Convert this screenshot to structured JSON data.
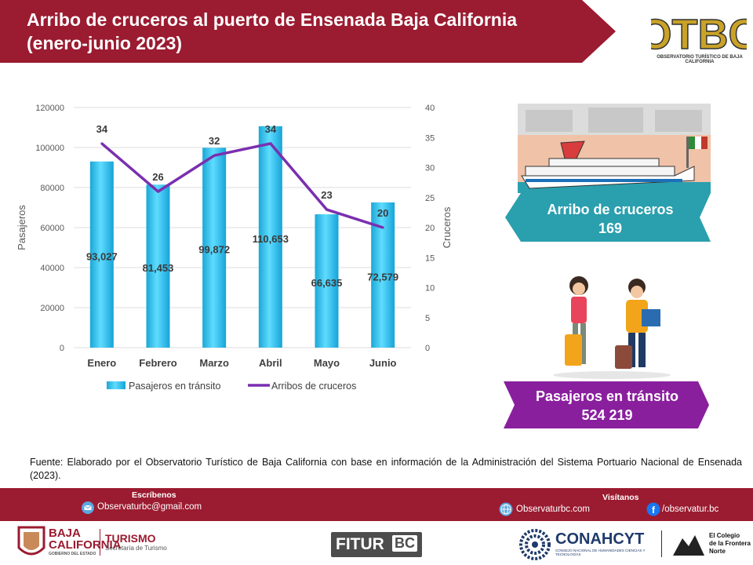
{
  "header": {
    "title_line1": "Arribo de cruceros al puerto de Ensenada Baja California",
    "title_line2": "(enero-junio 2023)",
    "color": "#9b1b30"
  },
  "logo": {
    "text": "OTBC",
    "subtitle": "OBSERVATORIO TURÍSTICO DE BAJA CALIFORNIA"
  },
  "chart_data": {
    "type": "bar",
    "categories": [
      "Enero",
      "Febrero",
      "Marzo",
      "Abril",
      "Mayo",
      "Junio"
    ],
    "series": [
      {
        "name": "Pasajeros en tránsito",
        "type": "bar",
        "axis": "left",
        "values": [
          93027,
          81453,
          99872,
          110653,
          66635,
          72579
        ],
        "labels": [
          "93,027",
          "81,453",
          "99,872",
          "110,653",
          "66,635",
          "72,579"
        ],
        "color": "#29c4f0"
      },
      {
        "name": "Arribos de cruceros",
        "type": "line",
        "axis": "right",
        "values": [
          34,
          26,
          32,
          34,
          23,
          20
        ],
        "color": "#7a2fb0"
      }
    ],
    "ylabel": "Pasajeros",
    "y2label": "Cruceros",
    "ylim": [
      0,
      120000
    ],
    "yticks": [
      "0",
      "20000",
      "40000",
      "60000",
      "80000",
      "100000",
      "120000"
    ],
    "y2lim": [
      0,
      40
    ],
    "y2ticks": [
      "0",
      "5",
      "10",
      "15",
      "20",
      "25",
      "30",
      "35",
      "40"
    ],
    "grid": true,
    "legend": "bottom"
  },
  "cards": {
    "cruceros_label": "Arribo de cruceros",
    "cruceros_value": "169",
    "cruceros_color": "#2a9fae",
    "pasajeros_label": "Pasajeros  en tránsito",
    "pasajeros_value": "524 219",
    "pasajeros_color": "#8a1f9e"
  },
  "source": "Fuente: Elaborado por el Observatorio Turístico de Baja California con base en información de la Administración del Sistema Portuario Nacional de Ensenada (2023).",
  "footer": {
    "escribenos_label": "Escríbenos",
    "email": "Observaturbc@gmail.com",
    "visitanos_label": "Visítanos",
    "website": "Observaturbc.com",
    "facebook": "/observatur.bc"
  },
  "logos": {
    "bc_line1": "BAJA",
    "bc_line2": "CALIFORNIA",
    "bc_line3": "GOBIERNO DEL ESTADO",
    "turismo": "TURISMO",
    "turismo_sub": "Secretaría de Turismo",
    "fitur": "FITUR",
    "fitur_bc": "BC",
    "conahcyt": "CONAHCYT",
    "conahcyt_sub": "CONSEJO NACIONAL DE HUMANIDADES CIENCIAS Y TECNOLOGÍAS",
    "colef_line1": "El Colegio",
    "colef_line2": "de la Frontera",
    "colef_line3": "Norte"
  }
}
